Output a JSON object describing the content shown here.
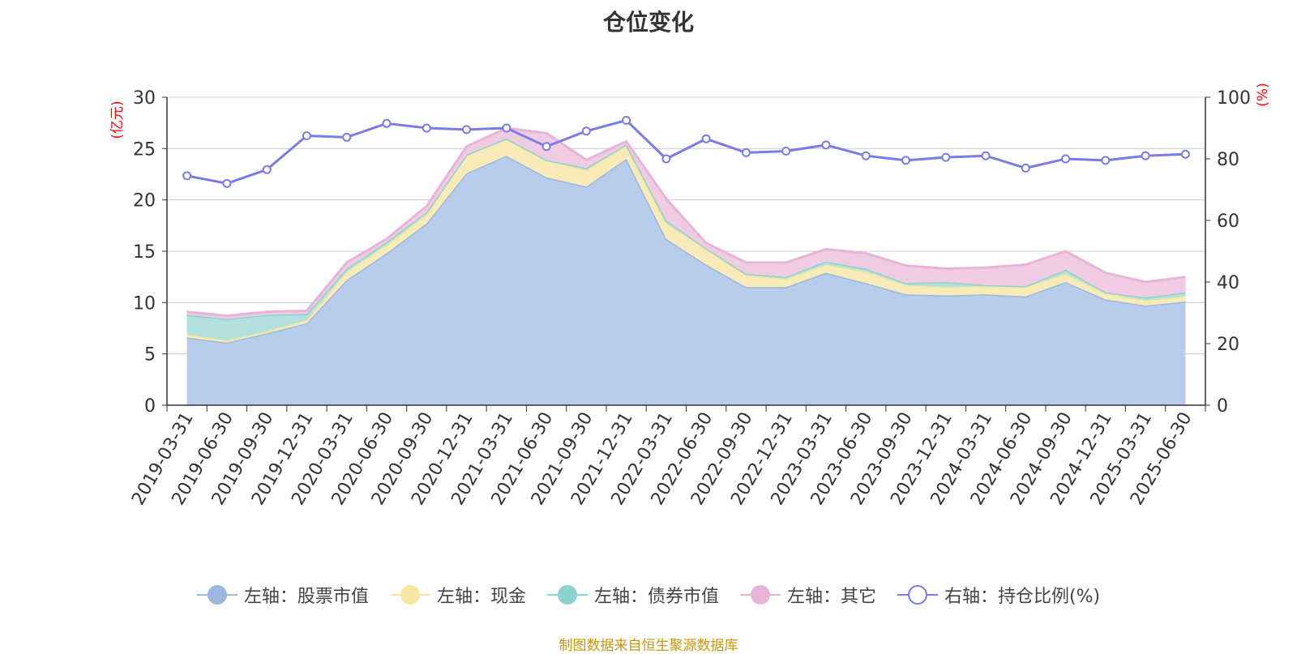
{
  "chart_data": {
    "type": "area",
    "title": "仓位变化",
    "ylabel_left": "(亿元)",
    "ylabel_right": "(%)",
    "ylim_left": [
      0,
      30
    ],
    "ylim_right": [
      0,
      100
    ],
    "yticks_left": [
      "0",
      "5",
      "10",
      "15",
      "20",
      "25",
      "30"
    ],
    "yticks_right": [
      "0",
      "20",
      "40",
      "60",
      "80",
      "100"
    ],
    "grid": true,
    "legend_position": "bottom",
    "categories": [
      "2019-03-31",
      "2019-06-30",
      "2019-09-30",
      "2019-12-31",
      "2020-03-31",
      "2020-06-30",
      "2020-09-30",
      "2020-12-31",
      "2021-03-31",
      "2021-06-30",
      "2021-09-30",
      "2021-12-31",
      "2022-03-31",
      "2022-06-30",
      "2022-09-30",
      "2022-12-31",
      "2023-03-31",
      "2023-06-30",
      "2023-09-30",
      "2023-12-31",
      "2024-03-31",
      "2024-06-30",
      "2024-09-30",
      "2024-12-31",
      "2025-03-31",
      "2025-06-30"
    ],
    "series": [
      {
        "name": "左轴：股票市值",
        "axis": "left",
        "stack": true,
        "color": "#9ab8e0",
        "fill": "#b8cceb",
        "values": [
          6.6,
          6.1,
          7.0,
          8.0,
          12.2,
          14.8,
          17.7,
          22.6,
          24.3,
          22.2,
          21.3,
          24.0,
          16.2,
          13.7,
          11.5,
          11.5,
          12.9,
          11.9,
          10.8,
          10.7,
          10.8,
          10.6,
          12.0,
          10.3,
          9.7,
          10.1
        ]
      },
      {
        "name": "左轴：现金",
        "axis": "left",
        "stack": true,
        "color": "#f5e6a0",
        "fill": "#f8ebb8",
        "values": [
          0.3,
          0.2,
          0.2,
          0.3,
          0.8,
          0.8,
          0.9,
          1.8,
          1.6,
          1.7,
          1.6,
          1.3,
          1.5,
          1.5,
          1.2,
          0.8,
          0.8,
          1.1,
          0.9,
          0.8,
          0.8,
          0.9,
          0.8,
          0.6,
          0.5,
          0.5
        ]
      },
      {
        "name": "左轴：债券市值",
        "axis": "left",
        "stack": true,
        "color": "#8dd3cf",
        "fill": "#b2e0dd",
        "values": [
          1.9,
          2.1,
          1.6,
          0.6,
          0.3,
          0.3,
          0.2,
          0.0,
          0.1,
          0.0,
          0.2,
          0.1,
          0.3,
          0.1,
          0.1,
          0.2,
          0.3,
          0.3,
          0.2,
          0.5,
          0.1,
          0.1,
          0.4,
          0.1,
          0.3,
          0.4
        ]
      },
      {
        "name": "左轴：其它",
        "axis": "left",
        "stack": true,
        "color": "#e8b3d8",
        "fill": "#f0cce3",
        "values": [
          0.3,
          0.3,
          0.3,
          0.3,
          0.6,
          0.3,
          0.6,
          0.8,
          1.0,
          2.6,
          0.8,
          0.3,
          2.1,
          0.5,
          1.1,
          1.4,
          1.2,
          1.5,
          1.7,
          1.3,
          1.7,
          2.1,
          1.8,
          1.9,
          1.5,
          1.5
        ]
      },
      {
        "name": "右轴：持仓比例(%)",
        "axis": "right",
        "type": "line",
        "color": "#7b7be8",
        "values": [
          74.5,
          72.0,
          76.5,
          87.5,
          87.0,
          91.5,
          90.0,
          89.5,
          90.0,
          84.0,
          89.0,
          92.5,
          80.0,
          86.5,
          82.0,
          82.5,
          84.5,
          81.0,
          79.5,
          80.5,
          81.0,
          77.0,
          80.0,
          79.5,
          81.0,
          81.5
        ]
      }
    ]
  },
  "footer": "制图数据来自恒生聚源数据库"
}
